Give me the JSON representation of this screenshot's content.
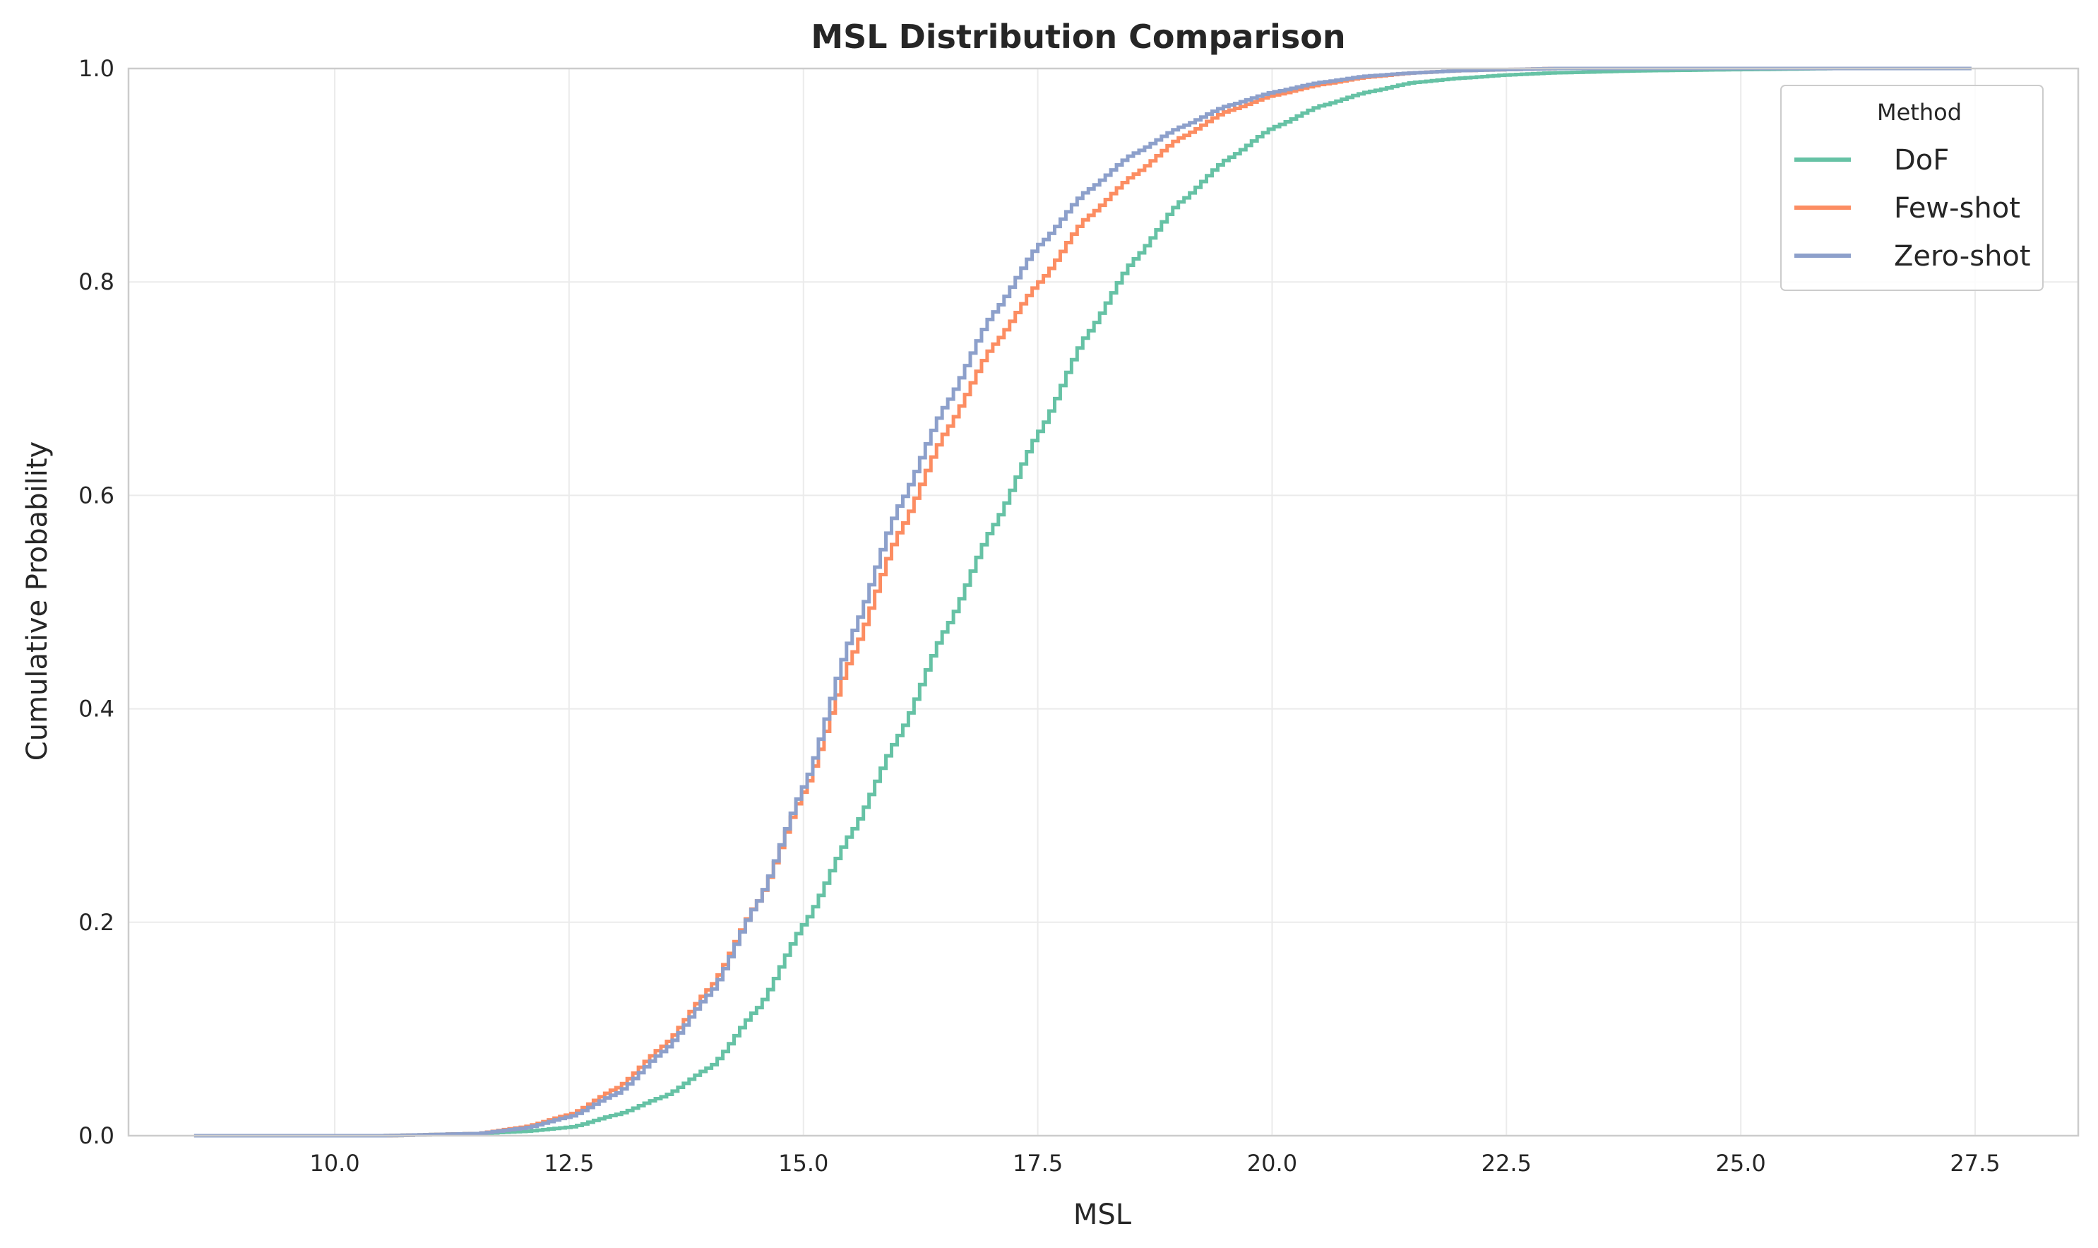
{
  "chart_data": {
    "type": "line",
    "step": true,
    "title": "MSL Distribution Comparison",
    "xlabel": "MSL",
    "ylabel": "Cumulative Probability",
    "xlim": [
      7.8,
      28.6
    ],
    "ylim": [
      0.0,
      1.0
    ],
    "xticks": [
      "10.0",
      "12.5",
      "15.0",
      "17.5",
      "20.0",
      "22.5",
      "25.0",
      "27.5"
    ],
    "yticks": [
      "0.0",
      "0.2",
      "0.4",
      "0.6",
      "0.8",
      "1.0"
    ],
    "grid": true,
    "legend": {
      "title": "Method",
      "position": "top-right"
    },
    "series": [
      {
        "name": "DoF",
        "color": "#66c2a5",
        "x": [
          8.5,
          10.5,
          11.5,
          12.0,
          12.5,
          13.0,
          13.5,
          14.0,
          14.5,
          15.0,
          15.5,
          16.0,
          16.5,
          17.0,
          17.5,
          18.0,
          18.5,
          19.0,
          19.5,
          20.0,
          20.5,
          21.0,
          21.5,
          22.0,
          22.5,
          23.0,
          24.0,
          25.0,
          26.0,
          27.5
        ],
        "y": [
          0.0,
          0.0,
          0.002,
          0.004,
          0.008,
          0.02,
          0.037,
          0.065,
          0.12,
          0.2,
          0.285,
          0.375,
          0.475,
          0.57,
          0.66,
          0.75,
          0.82,
          0.875,
          0.915,
          0.945,
          0.965,
          0.978,
          0.987,
          0.991,
          0.994,
          0.996,
          0.998,
          0.999,
          1.0,
          1.0
        ]
      },
      {
        "name": "Few-shot",
        "color": "#fc8d62",
        "x": [
          8.5,
          10.5,
          11.5,
          12.0,
          12.5,
          13.0,
          13.5,
          14.0,
          14.5,
          15.0,
          15.5,
          16.0,
          16.5,
          17.0,
          17.5,
          18.0,
          18.5,
          19.0,
          19.5,
          20.0,
          20.5,
          21.0,
          21.5,
          22.0,
          22.5,
          23.0,
          24.0,
          25.0,
          26.0,
          27.5
        ],
        "y": [
          0.0,
          0.0,
          0.002,
          0.008,
          0.02,
          0.045,
          0.085,
          0.14,
          0.22,
          0.325,
          0.45,
          0.565,
          0.66,
          0.74,
          0.8,
          0.86,
          0.9,
          0.935,
          0.96,
          0.975,
          0.985,
          0.992,
          0.996,
          0.998,
          0.999,
          1.0,
          1.0,
          1.0,
          1.0,
          1.0
        ]
      },
      {
        "name": "Zero-shot",
        "color": "#8da0cb",
        "x": [
          8.5,
          10.5,
          11.5,
          12.0,
          12.5,
          13.0,
          13.5,
          14.0,
          14.5,
          15.0,
          15.5,
          16.0,
          16.5,
          17.0,
          17.5,
          18.0,
          18.5,
          19.0,
          19.5,
          20.0,
          20.5,
          21.0,
          21.5,
          22.0,
          22.5,
          23.0,
          24.0,
          25.0,
          26.0,
          27.5
        ],
        "y": [
          0.0,
          0.0,
          0.002,
          0.007,
          0.018,
          0.04,
          0.08,
          0.135,
          0.22,
          0.33,
          0.47,
          0.59,
          0.685,
          0.77,
          0.835,
          0.885,
          0.92,
          0.945,
          0.965,
          0.978,
          0.987,
          0.993,
          0.996,
          0.998,
          0.999,
          1.0,
          1.0,
          1.0,
          1.0,
          1.0
        ]
      }
    ]
  }
}
